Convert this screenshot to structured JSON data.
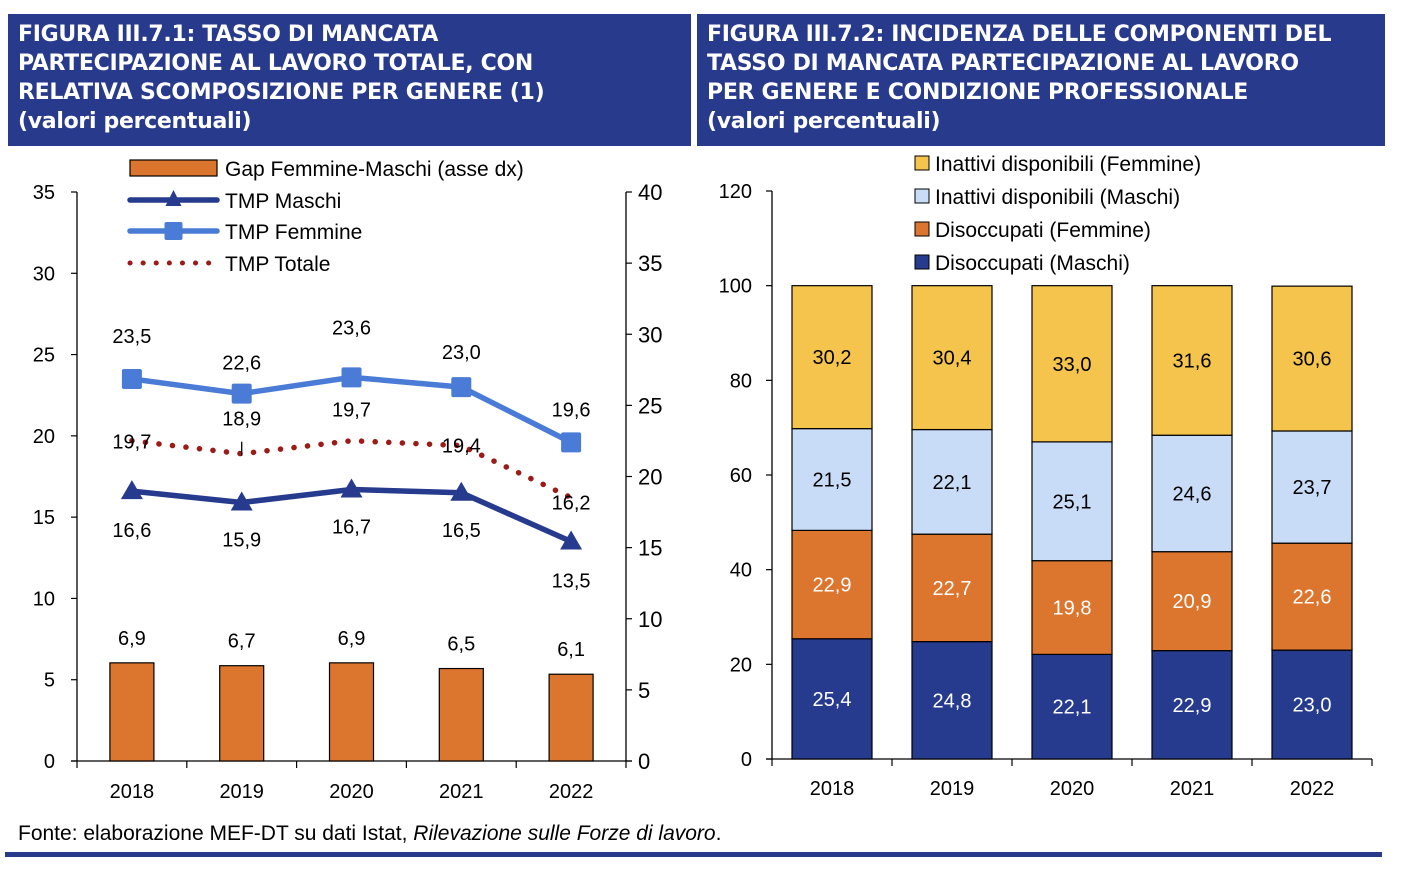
{
  "colors": {
    "header_bg": "#283a8c",
    "orange": "#dc762f",
    "navy": "#263a8e",
    "light_blue": "#4a7bd6",
    "dark_red": "#9b1b17",
    "yellow": "#f5c44d",
    "pale_blue": "#c9dcf7"
  },
  "left": {
    "title_lines": [
      "FIGURA III.7.1: TASSO DI MANCATA",
      "PARTECIPAZIONE AL LAVORO TOTALE, CON",
      "RELATIVA SCOMPOSIZIONE PER GENERE (1)",
      "(valori percentuali)"
    ]
  },
  "right": {
    "title_lines": [
      "FIGURA III.7.2: INCIDENZA DELLE COMPONENTI DEL",
      "TASSO DI MANCATA PARTECIPAZIONE AL LAVORO",
      "PER GENERE E CONDIZIONE PROFESSIONALE",
      "(valori percentuali)"
    ]
  },
  "source": {
    "prefix": "Fonte: elaborazione MEF-DT su dati Istat, ",
    "italic": "Rilevazione sulle Forze di lavoro",
    "suffix": "."
  },
  "chart_data": [
    {
      "type": "bar+line",
      "title": "FIGURA III.7.1: TASSO DI MANCATA PARTECIPAZIONE AL LAVORO TOTALE, CON RELATIVA SCOMPOSIZIONE PER GENERE (1) (valori percentuali)",
      "categories": [
        "2018",
        "2019",
        "2020",
        "2021",
        "2022"
      ],
      "left_axis": {
        "min": 0,
        "max": 35,
        "step": 5,
        "ticks": [
          "0",
          "5",
          "10",
          "15",
          "20",
          "25",
          "30",
          "35"
        ]
      },
      "right_axis": {
        "min": 0,
        "max": 40,
        "step": 5,
        "ticks": [
          "0",
          "5",
          "10",
          "15",
          "20",
          "25",
          "30",
          "35",
          "40"
        ]
      },
      "legend_position": "top-left",
      "grid": false,
      "series": [
        {
          "name": "Gap Femmine-Maschi (asse dx)",
          "kind": "bar",
          "axis": "right",
          "color": "#dc762f",
          "values": [
            6.9,
            6.7,
            6.9,
            6.5,
            6.1
          ],
          "labels": [
            "6,9",
            "6,7",
            "6,9",
            "6,5",
            "6,1"
          ]
        },
        {
          "name": "TMP Maschi",
          "kind": "line",
          "marker": "triangle",
          "axis": "left",
          "color": "#263a8e",
          "values": [
            16.6,
            15.9,
            16.7,
            16.5,
            13.5
          ],
          "labels": [
            "16,6",
            "15,9",
            "16,7",
            "16,5",
            "13,5"
          ]
        },
        {
          "name": "TMP Femmine",
          "kind": "line",
          "marker": "square",
          "axis": "left",
          "color": "#4a7bd6",
          "values": [
            23.5,
            22.6,
            23.6,
            23.0,
            19.6
          ],
          "labels": [
            "23,5",
            "22,6",
            "23,6",
            "23,0",
            "19,6"
          ]
        },
        {
          "name": "TMP Totale",
          "kind": "line",
          "style": "dotted",
          "axis": "left",
          "color": "#9b1b17",
          "values": [
            19.7,
            18.9,
            19.7,
            19.4,
            16.2
          ],
          "labels": [
            "19,7",
            "18,9",
            "19,7",
            "19,4",
            "16,2"
          ]
        }
      ]
    },
    {
      "type": "stacked-bar",
      "title": "FIGURA III.7.2: INCIDENZA DELLE COMPONENTI DEL TASSO DI MANCATA PARTECIPAZIONE AL LAVORO PER GENERE E CONDIZIONE PROFESSIONALE (valori percentuali)",
      "categories": [
        "2018",
        "2019",
        "2020",
        "2021",
        "2022"
      ],
      "y_axis": {
        "min": 0,
        "max": 120,
        "step": 20,
        "ticks": [
          "0",
          "20",
          "40",
          "60",
          "80",
          "100",
          "120"
        ]
      },
      "legend_position": "top",
      "grid": false,
      "series": [
        {
          "name": "Disoccupati (Maschi)",
          "color": "#263a8e",
          "label_color": "#ffffff",
          "values": [
            25.4,
            24.8,
            22.1,
            22.9,
            23.0
          ],
          "labels": [
            "25,4",
            "24,8",
            "22,1",
            "22,9",
            "23,0"
          ]
        },
        {
          "name": "Disoccupati (Femmine)",
          "color": "#dc762f",
          "label_color": "#ffffff",
          "values": [
            22.9,
            22.7,
            19.8,
            20.9,
            22.6
          ],
          "labels": [
            "22,9",
            "22,7",
            "19,8",
            "20,9",
            "22,6"
          ]
        },
        {
          "name": "Inattivi disponibili (Maschi)",
          "color": "#c9dcf7",
          "label_color": "#000000",
          "values": [
            21.5,
            22.1,
            25.1,
            24.6,
            23.7
          ],
          "labels": [
            "21,5",
            "22,1",
            "25,1",
            "24,6",
            "23,7"
          ]
        },
        {
          "name": "Inattivi disponibili (Femmine)",
          "color": "#f5c44d",
          "label_color": "#000000",
          "values": [
            30.2,
            30.4,
            33.0,
            31.6,
            30.6
          ],
          "labels": [
            "30,2",
            "30,4",
            "33,0",
            "31,6",
            "30,6"
          ]
        }
      ],
      "legend_order": [
        "Inattivi disponibili (Femmine)",
        "Inattivi disponibili (Maschi)",
        "Disoccupati (Femmine)",
        "Disoccupati (Maschi)"
      ]
    }
  ]
}
